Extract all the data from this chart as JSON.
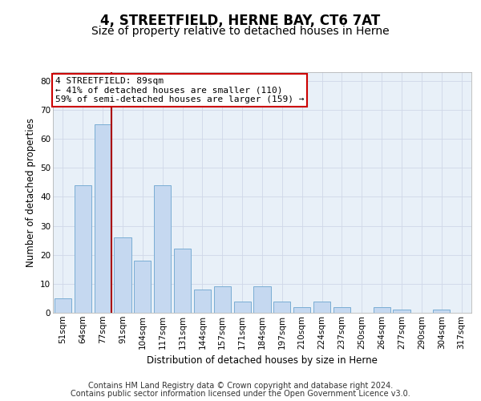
{
  "title1": "4, STREETFIELD, HERNE BAY, CT6 7AT",
  "title2": "Size of property relative to detached houses in Herne",
  "xlabel": "Distribution of detached houses by size in Herne",
  "ylabel": "Number of detached properties",
  "categories": [
    "51sqm",
    "64sqm",
    "77sqm",
    "91sqm",
    "104sqm",
    "117sqm",
    "131sqm",
    "144sqm",
    "157sqm",
    "171sqm",
    "184sqm",
    "197sqm",
    "210sqm",
    "224sqm",
    "237sqm",
    "250sqm",
    "264sqm",
    "277sqm",
    "290sqm",
    "304sqm",
    "317sqm"
  ],
  "values": [
    5,
    44,
    65,
    26,
    18,
    44,
    22,
    8,
    9,
    4,
    9,
    4,
    2,
    4,
    2,
    0,
    2,
    1,
    0,
    1,
    0
  ],
  "bar_color": "#c5d8f0",
  "bar_edge_color": "#7aadd4",
  "grid_color": "#d0d8e8",
  "vline_color": "#aa0000",
  "annotation_text": "4 STREETFIELD: 89sqm\n← 41% of detached houses are smaller (110)\n59% of semi-detached houses are larger (159) →",
  "annotation_box_color": "#ffffff",
  "annotation_box_edge_color": "#cc0000",
  "ylim": [
    0,
    83
  ],
  "yticks": [
    0,
    10,
    20,
    30,
    40,
    50,
    60,
    70,
    80
  ],
  "footer1": "Contains HM Land Registry data © Crown copyright and database right 2024.",
  "footer2": "Contains public sector information licensed under the Open Government Licence v3.0.",
  "bg_color": "#e8f0f8",
  "fig_bg_color": "#ffffff",
  "title1_fontsize": 12,
  "title2_fontsize": 10,
  "axis_label_fontsize": 8.5,
  "tick_fontsize": 7.5,
  "annotation_fontsize": 8,
  "footer_fontsize": 7
}
